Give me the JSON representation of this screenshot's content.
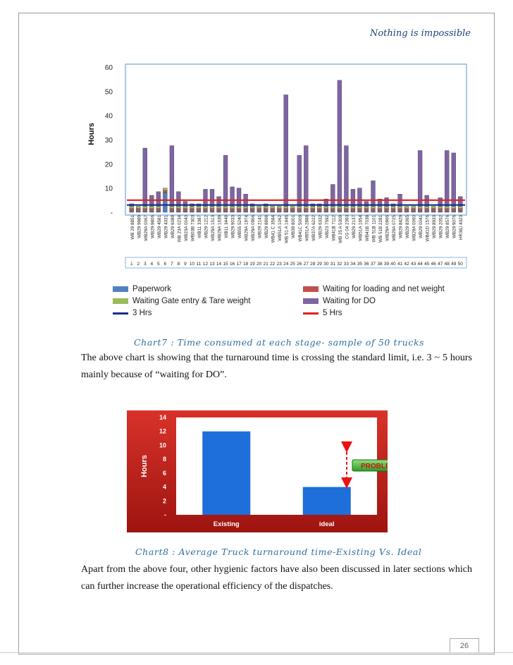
{
  "header": {
    "tagline": "Nothing is impossible"
  },
  "chart_data": [
    {
      "type": "bar",
      "stacked": true,
      "ylabel": "Hours",
      "ylim": [
        0,
        60
      ],
      "yticks": [
        "-",
        "10",
        "20",
        "30",
        "40",
        "50",
        "60"
      ],
      "categories": [
        "WB 29 8851",
        "WB29 9989",
        "WB29A 0067",
        "WB29 9806",
        "WB29 4581",
        "WB29 4331",
        "WB29 6089",
        "WB 23A 0234",
        "WB23A 0043",
        "WB03B 7303",
        "WB11 3387",
        "WB29 1212",
        "WB29A 1513",
        "WB29A 1639",
        "WB11 3449",
        "WB29 9033",
        "WB55 5240",
        "WB29A 1974",
        "WB29A 0956",
        "WB29 2141",
        "WB29 8868",
        "WB41 C 3584",
        "WB51A 1062",
        "WB 51 A 1446",
        "WB39 8001",
        "WB41C 5009",
        "WB51A 2888",
        "WB37A 6222",
        "WB29 6332",
        "WB23 7592",
        "WB41B 7112",
        "WB 25 A 5309",
        "CG 04 2393",
        "WB29 2137",
        "WB51A 1654",
        "WB41B 7038",
        "WB 51B 1101",
        "WB 51B 2281",
        "WB29A 0966",
        "WB29A 0725",
        "WB29 8429",
        "WB29 8365",
        "WB29A 0060",
        "WB29 0041",
        "WB41D 1576",
        "WB29 8933",
        "WB29 2052",
        "WB29 8576",
        "WB29 9076",
        "HR38J 4323"
      ],
      "index_labels": [
        "1",
        "2",
        "3",
        "4",
        "5",
        "6",
        "7",
        "8",
        "9",
        "10",
        "11",
        "12",
        "13",
        "14",
        "15",
        "16",
        "17",
        "18",
        "19",
        "20",
        "21",
        "22",
        "23",
        "24",
        "25",
        "26",
        "27",
        "28",
        "29",
        "30",
        "31",
        "32",
        "33",
        "34",
        "35",
        "36",
        "37",
        "38",
        "39",
        "40",
        "41",
        "42",
        "43",
        "44",
        "45",
        "46",
        "47",
        "48",
        "49",
        "50"
      ],
      "series": [
        {
          "name": "Paperwork",
          "color": "#4f81bd",
          "values": [
            0.5,
            0.5,
            0.5,
            0.5,
            0.5,
            8,
            0.5,
            0.5,
            0.5,
            0.5,
            0.5,
            0.5,
            0.5,
            0.5,
            0.5,
            0.5,
            0.5,
            0.5,
            0.5,
            0.5,
            0.5,
            0.5,
            0.5,
            0.5,
            0.5,
            0.5,
            0.5,
            0.5,
            0.5,
            0.5,
            0.5,
            0.5,
            0.5,
            0.5,
            0.5,
            0.5,
            0.5,
            0.5,
            0.5,
            0.5,
            0.5,
            0.5,
            0.5,
            0.5,
            0.5,
            0.5,
            0.5,
            0.5,
            0.5,
            0.5
          ]
        },
        {
          "name": "Waiting for loading and net weight",
          "color": "#c0504d",
          "values": [
            1,
            1,
            1,
            1,
            1,
            1,
            1,
            1,
            1,
            1,
            1,
            1,
            1,
            1,
            1,
            1,
            1,
            1,
            1,
            1,
            1,
            1,
            1,
            1,
            1,
            1,
            1,
            1,
            1,
            1,
            1,
            1,
            1,
            1,
            1,
            1,
            1,
            1,
            1,
            1,
            1,
            1,
            1,
            1,
            1,
            1,
            1,
            1,
            1,
            1
          ]
        },
        {
          "name": "Waiting Gate entry & Tare weight",
          "color": "#9bbb59",
          "values": [
            1,
            1,
            1,
            1,
            1,
            1,
            1,
            1,
            1,
            1,
            1,
            1,
            1,
            1,
            1,
            1,
            1,
            1,
            1,
            1,
            1,
            1,
            1,
            1,
            1,
            1,
            1,
            1,
            1,
            1,
            1,
            1,
            1,
            1,
            1,
            1,
            1,
            1,
            1,
            1,
            1,
            1,
            1,
            1,
            1,
            1,
            1,
            1,
            1,
            1
          ]
        },
        {
          "name": "Waiting for DO",
          "color": "#8064a2",
          "values": [
            1,
            0,
            24,
            4.5,
            6,
            0,
            25,
            6,
            2,
            1,
            1,
            7,
            7,
            4,
            21,
            8,
            7.5,
            5,
            1,
            0,
            1,
            0,
            0,
            46,
            0,
            21,
            25,
            1,
            1,
            3,
            9,
            52,
            25,
            7,
            7.5,
            2,
            10.5,
            3,
            3.5,
            1,
            5,
            0,
            0,
            23,
            4.5,
            0,
            3.5,
            23,
            22,
            4
          ]
        }
      ],
      "reference_lines": [
        {
          "name": "3 Hrs",
          "value": 3,
          "color": "#1f2a8c"
        },
        {
          "name": "5 Hrs",
          "value": 5,
          "color": "#e02020"
        }
      ]
    },
    {
      "type": "bar",
      "ylabel": "Hours",
      "ylim": [
        0,
        14
      ],
      "yticks": [
        "-",
        "2",
        "4",
        "6",
        "8",
        "10",
        "12",
        "14"
      ],
      "categories": [
        "Existing",
        "ideal"
      ],
      "values": [
        12,
        4
      ],
      "bar_color": "#1e6fd9",
      "annotation": "PROBLEM"
    }
  ],
  "captions": {
    "chart7": "Chart7 : Time consumed at each stage- sample of 50 trucks",
    "chart8": "Chart8 : Average Truck turnaround time-Existing Vs. Ideal"
  },
  "paragraphs": {
    "p1": "The above chart is showing that the turnaround time is crossing the standard limit, i.e. 3 ~ 5 hours mainly because of “waiting for DO”.",
    "p2": "Apart from the above four, other hygienic factors have also been discussed in later sections which can further increase the operational efficiency of the dispatches."
  },
  "page_number": "26"
}
